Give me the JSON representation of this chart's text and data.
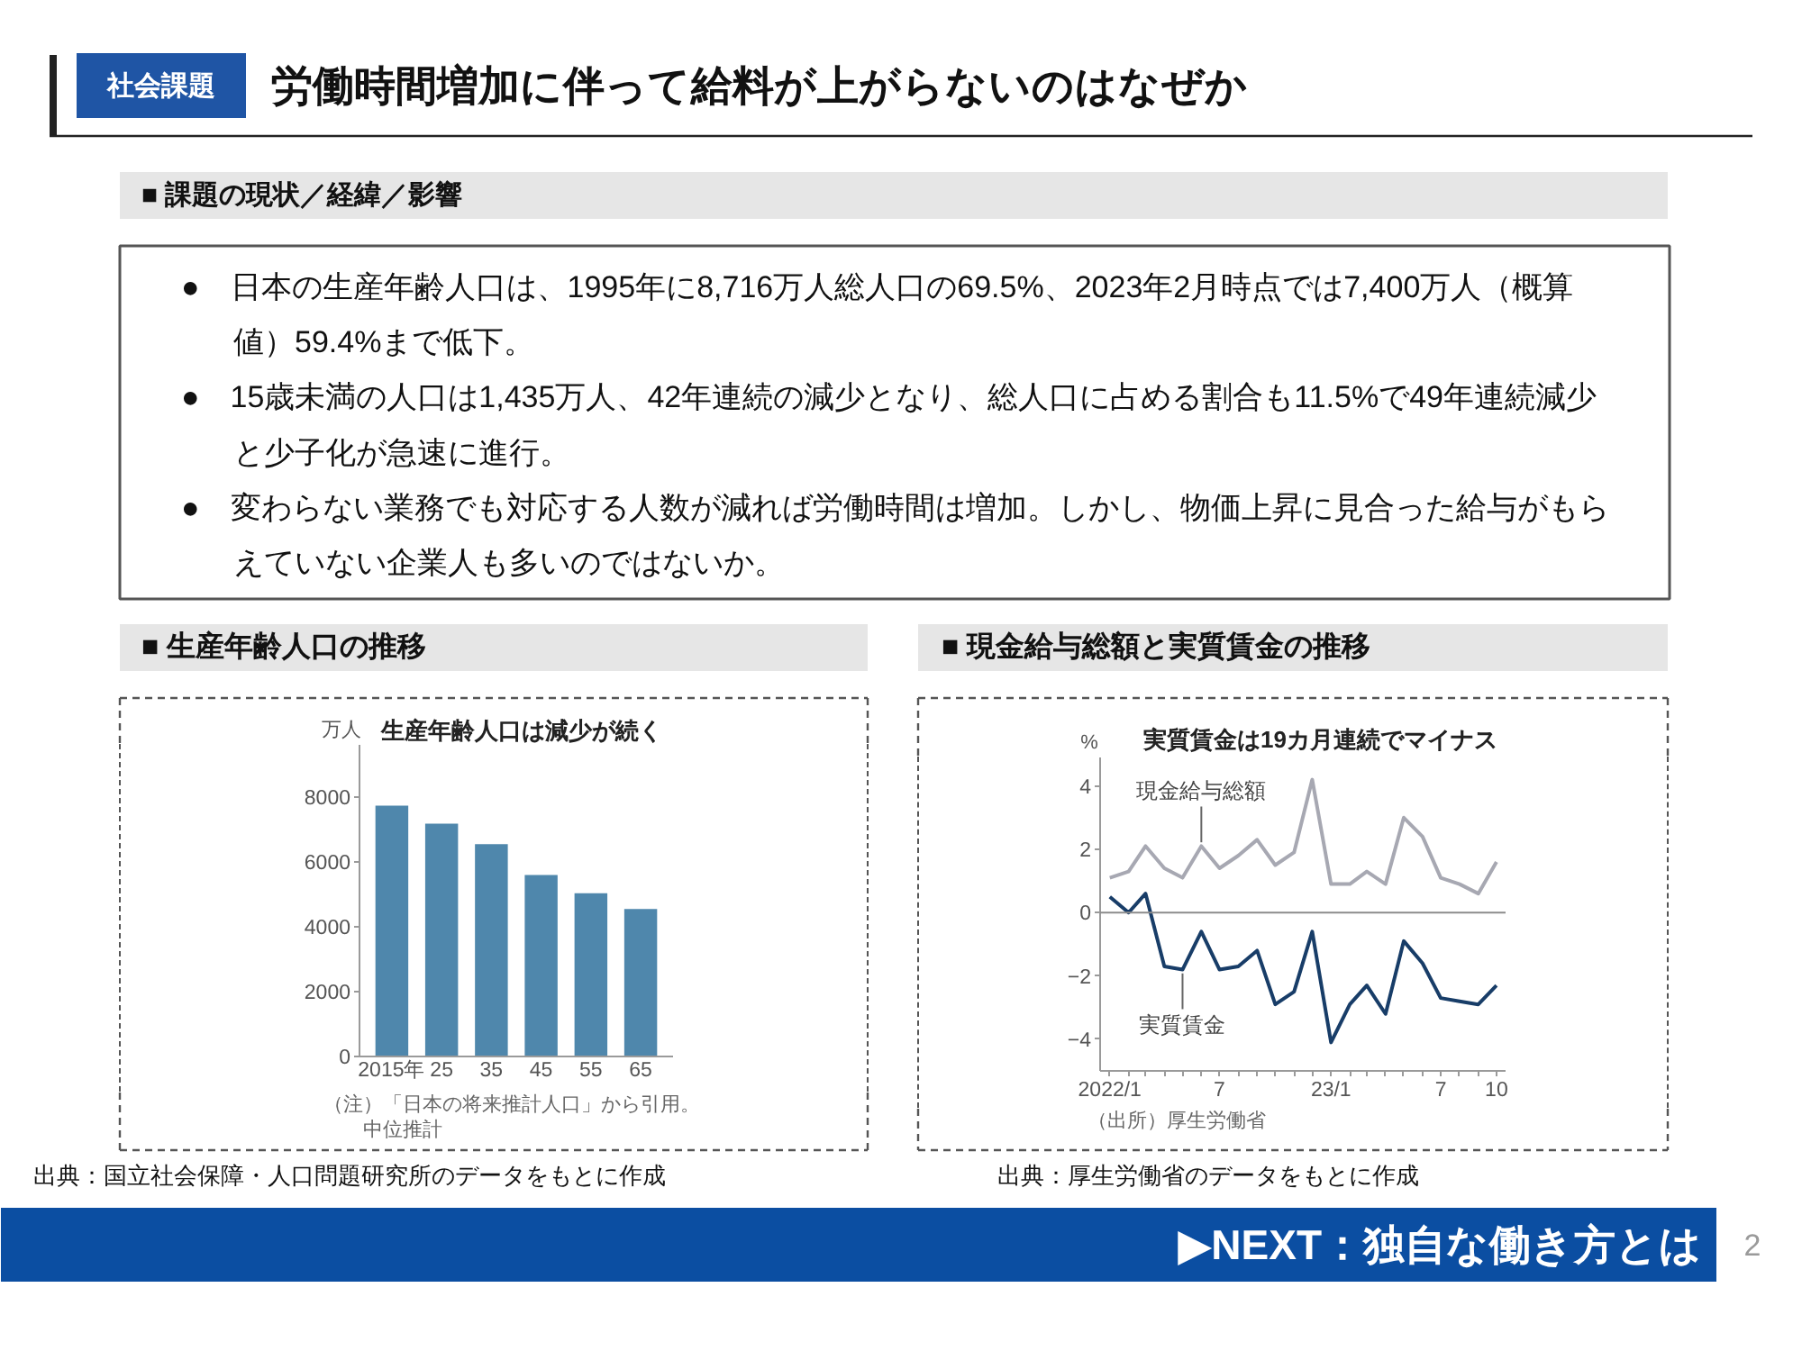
{
  "chart_data": [
    {
      "type": "other",
      "title": "労働時間増加に伴って給料が上がらないのはなぜか",
      "subtitle": "社会課題",
      "annotations": [
        "■ 課題の現状／経緯／影響",
        "●　日本の生産年齢人口は、1995年に8,716万人総人口の69.5%、2023年2月時点では7,400万人（概算値）59.4%まで低下。",
        "●　15歳未満の人口は1,435万人、42年連続の減少となり、総人口に占める割合も11.5%で49年連続減少と少子化が急速に進行。",
        "●　変わらない業務でも対応する人数が減れば労働時間は増加。しかし、物価上昇に見合った給与がもらえていない企業人も多いのではないか。"
      ]
    },
    {
      "type": "bar",
      "title": "■ 生産年齢人口の推移",
      "subtitle": "生産年齢人口は減少が続く",
      "ylabel": "万人",
      "categories": [
        "2015年",
        "25",
        "35",
        "45",
        "55",
        "65"
      ],
      "values": [
        7730,
        7170,
        6540,
        5590,
        5030,
        4540
      ],
      "color": "#4f87ac",
      "ylim": [
        0,
        9600
      ],
      "yticks": [
        0,
        2000,
        4000,
        6000,
        8000
      ],
      "grid": false,
      "annotations": [
        "（注）「日本の将来推計人口」から引用。",
        "中位推計",
        "出典：国立社会保障・人口問題研究所のデータをもとに作成"
      ]
    },
    {
      "type": "line",
      "title": "■ 現金給与総額と実質賃金の推移",
      "subtitle": "実質賃金は19カ月連続でマイナス",
      "ylabel": "%",
      "x": [
        "2022-01",
        "2022-02",
        "2022-03",
        "2022-04",
        "2022-05",
        "2022-06",
        "2022-07",
        "2022-08",
        "2022-09",
        "2022-10",
        "2022-11",
        "2022-12",
        "2023-01",
        "2023-02",
        "2023-03",
        "2023-04",
        "2023-05",
        "2023-06",
        "2023-07",
        "2023-08",
        "2023-09",
        "2023-10"
      ],
      "xlim": [
        "2021-12-16",
        "2023-10-16"
      ],
      "xticks": [
        {
          "value": "2022-01",
          "label": "2022/1"
        },
        {
          "value": "2022-02",
          "label": null
        },
        {
          "value": "2022-03",
          "label": null
        },
        {
          "value": "2022-04",
          "label": null
        },
        {
          "value": "2022-05",
          "label": null
        },
        {
          "value": "2022-06",
          "label": null
        },
        {
          "value": "2022-07",
          "label": "7"
        },
        {
          "value": "2022-08",
          "label": null
        },
        {
          "value": "2022-09",
          "label": null
        },
        {
          "value": "2022-10",
          "label": null
        },
        {
          "value": "2022-11",
          "label": null
        },
        {
          "value": "2022-12",
          "label": null
        },
        {
          "value": "2023-01",
          "label": "23/1"
        },
        {
          "value": "2023-02",
          "label": null
        },
        {
          "value": "2023-03",
          "label": null
        },
        {
          "value": "2023-04",
          "label": null
        },
        {
          "value": "2023-05",
          "label": null
        },
        {
          "value": "2023-06",
          "label": null
        },
        {
          "value": "2023-07",
          "label": "7"
        },
        {
          "value": "2023-08",
          "label": null
        },
        {
          "value": "2023-09",
          "label": null
        },
        {
          "value": "2023-10",
          "label": "10"
        }
      ],
      "ylim": [
        -5,
        4.9
      ],
      "yticks": [
        -4,
        -2,
        0,
        2,
        4
      ],
      "series": [
        {
          "name": "現金給与総額",
          "color": "#a7a8b2",
          "values": [
            1.1,
            1.3,
            2.1,
            1.4,
            1.1,
            2.1,
            1.4,
            1.8,
            2.3,
            1.5,
            1.9,
            4.2,
            0.9,
            0.9,
            1.3,
            0.9,
            3.0,
            2.4,
            1.1,
            0.9,
            0.6,
            1.6
          ]
        },
        {
          "name": "実質賃金",
          "color": "#183d68",
          "values": [
            0.5,
            0.0,
            0.6,
            -1.7,
            -1.8,
            -0.6,
            -1.8,
            -1.7,
            -1.2,
            -2.9,
            -2.5,
            -0.6,
            -4.1,
            -2.9,
            -2.3,
            -3.2,
            -0.9,
            -1.6,
            -2.7,
            -2.8,
            -2.9,
            -2.3
          ]
        }
      ],
      "ref_lines": [
        {
          "axis": "y",
          "value": 0,
          "color": "#8c8c8c"
        }
      ],
      "grid": false,
      "annotations": [
        "（出所）厚生労働省",
        "出典：厚生労働省のデータをもとに作成"
      ]
    },
    {
      "type": "other",
      "annotations": [
        "▶NEXT：独自な働き方とは",
        "2"
      ]
    }
  ]
}
